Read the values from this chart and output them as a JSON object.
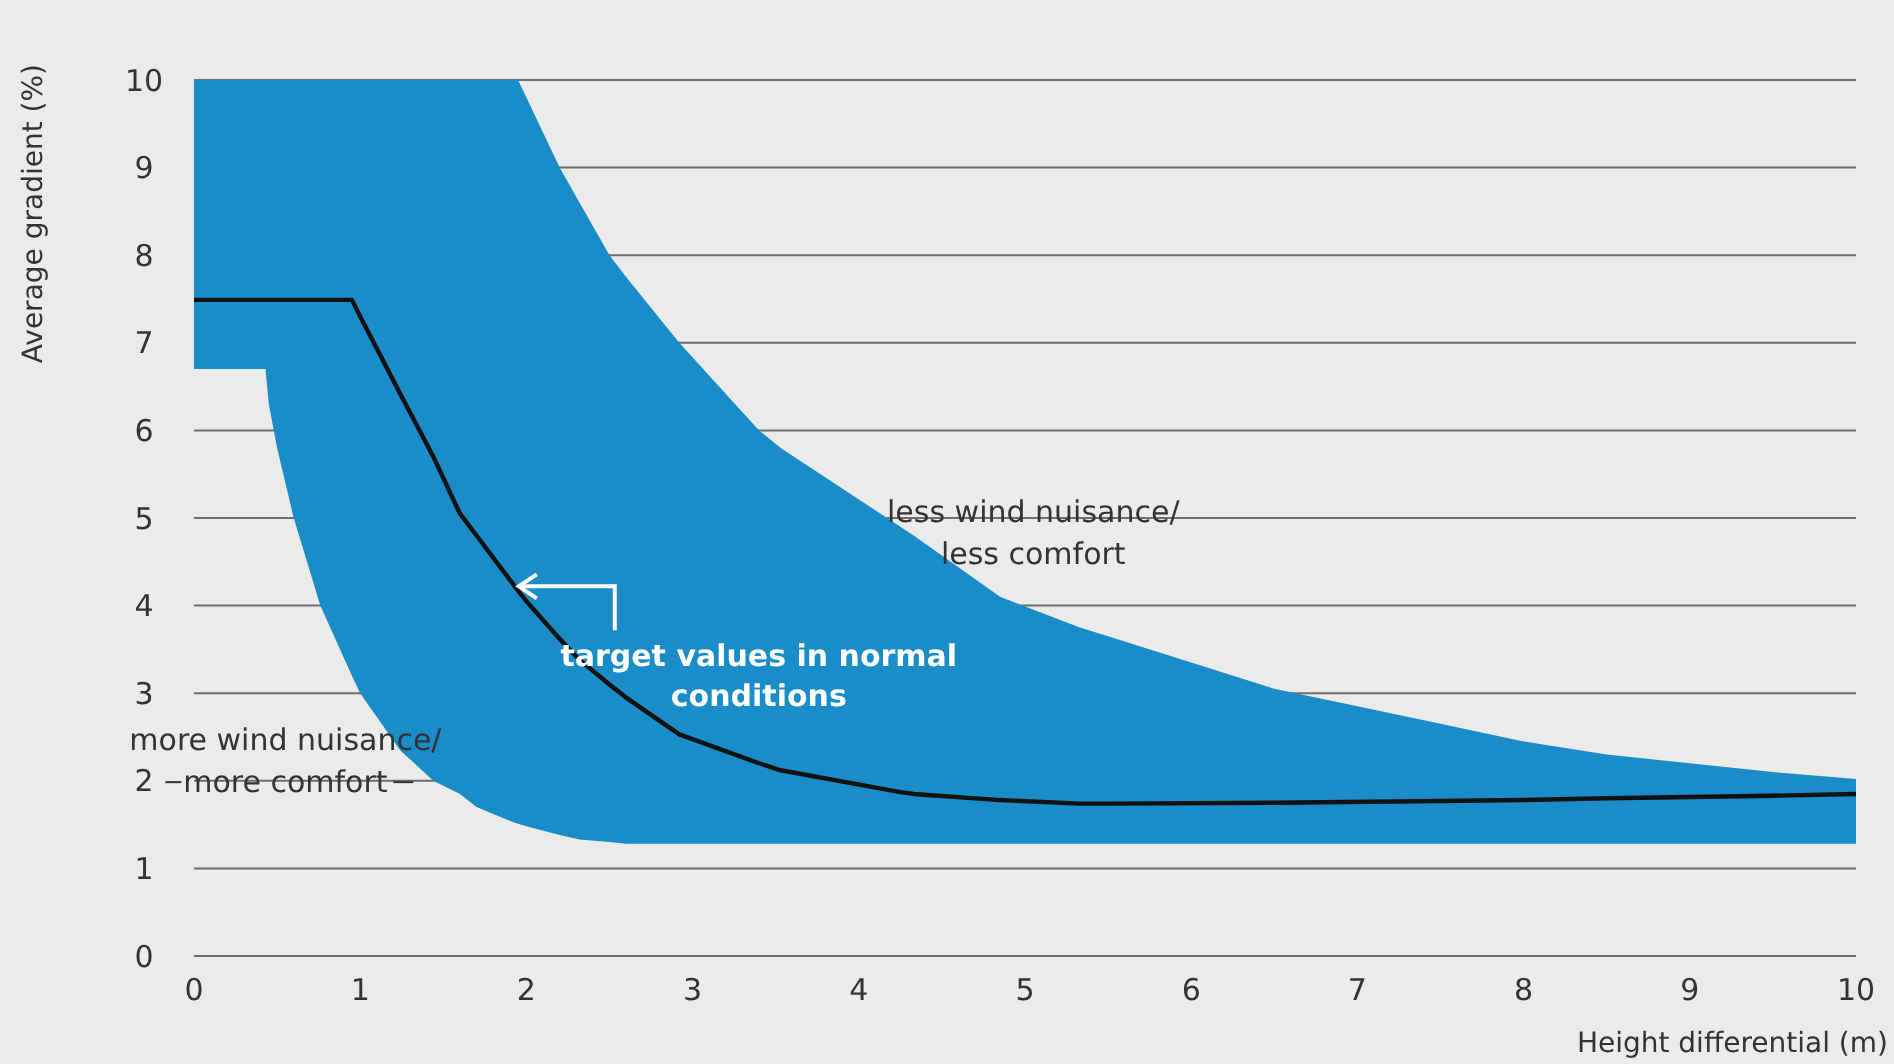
{
  "chart_data": {
    "type": "line",
    "xlabel": "Height differential (m)",
    "ylabel": "Average gradient (%)",
    "x": [
      0,
      0.43,
      0.45,
      0.5,
      0.6,
      0.76,
      0.95,
      1.0,
      1.24,
      1.44,
      1.6,
      1.7,
      1.93,
      1.95,
      2.0,
      2.2,
      2.32,
      2.5,
      2.6,
      2.92,
      3.4,
      3.53,
      4.25,
      4.33,
      4.85,
      5.33,
      5.5,
      6.5,
      7.5,
      8,
      8.5,
      9.5,
      10
    ],
    "series": [
      {
        "color": "#111111",
        "values": [
          7.49,
          7.49,
          7.49,
          7.49,
          7.49,
          7.49,
          7.49,
          7.3,
          6.42,
          5.7,
          5.05,
          4.8,
          4.22,
          4.17,
          4.05,
          3.62,
          3.38,
          3.1,
          2.95,
          2.53,
          2.2,
          2.12,
          1.87,
          1.85,
          1.78,
          1.74,
          1.74,
          1.75,
          1.77,
          1.78,
          1.8,
          1.83,
          1.85
        ],
        "lower": [
          6.7,
          6.7,
          6.3,
          5.8,
          5.0,
          4.0,
          3.2,
          3.0,
          2.35,
          2.0,
          1.85,
          1.7,
          1.52,
          1.51,
          1.48,
          1.38,
          1.33,
          1.3,
          1.28,
          1.28,
          1.28,
          1.28,
          1.28,
          1.28,
          1.28,
          1.28,
          1.28,
          1.28,
          1.28,
          1.28,
          1.28,
          1.28,
          1.28
        ],
        "upper": [
          10,
          10,
          10,
          10,
          10,
          10,
          10,
          10,
          10,
          10,
          10,
          10,
          10,
          10,
          9.8,
          9.0,
          8.6,
          8.0,
          7.75,
          7.0,
          6.0,
          5.8,
          4.9,
          4.8,
          4.1,
          3.75,
          3.65,
          3.05,
          2.65,
          2.45,
          2.3,
          2.1,
          2.02
        ]
      }
    ],
    "xlim": [
      0,
      10
    ],
    "xticks": [
      0,
      1,
      2,
      3,
      4,
      5,
      6,
      7,
      8,
      9,
      10
    ],
    "ylim": [
      0,
      10
    ],
    "yticks": [
      0,
      1,
      2,
      3,
      4,
      5,
      6,
      7,
      8,
      9,
      10
    ],
    "grid": "y",
    "line_style": "solid",
    "marker": "none",
    "annotations": [
      "less wind nuisance/\nless comfort",
      "more wind nuisance/\nmore comfort",
      {
        "text": "target values in normal conditions",
        "x": 1.93,
        "y": 4.22
      }
    ]
  }
}
